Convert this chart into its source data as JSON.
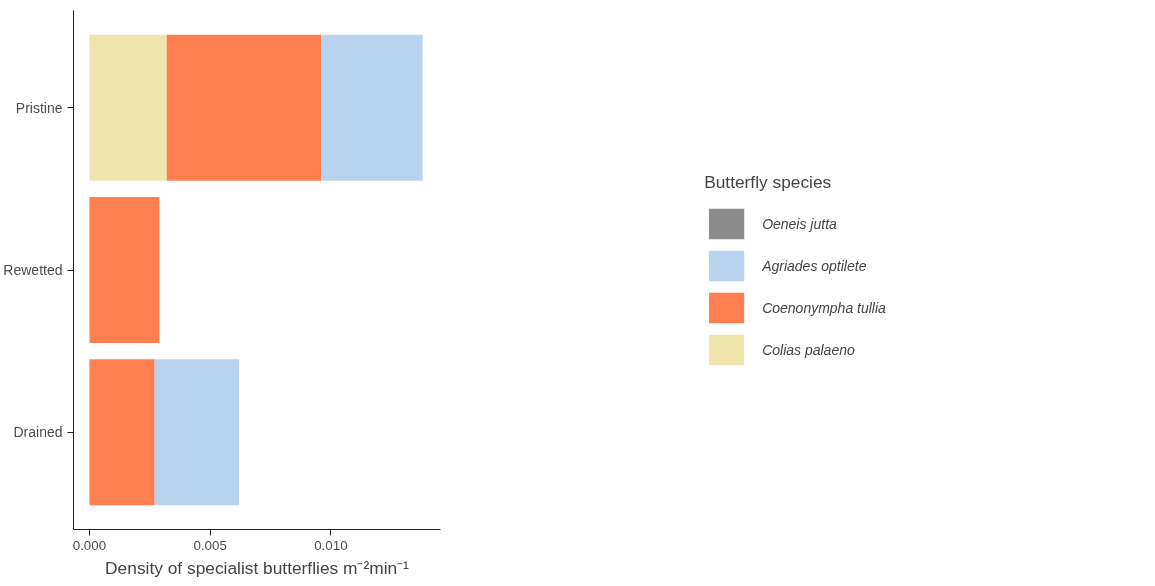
{
  "chart_data": {
    "type": "bar",
    "orientation": "horizontal",
    "stacked": true,
    "xlabel": "Density of specialist butterflies m⁻²min⁻¹",
    "legend_title": "Butterfly species",
    "categories": [
      "Pristine",
      "Rewetted",
      "Drained"
    ],
    "series": [
      {
        "name": "Colias palaeno",
        "color": "#ede5ab",
        "values": [
          0.0032,
          null,
          null
        ]
      },
      {
        "name": "Coenonympha tullia",
        "color": "#ff7f50",
        "values": [
          0.0064,
          0.0029,
          0.0027
        ]
      },
      {
        "name": "Agriades optilete",
        "color": "#b9d3ee",
        "values": [
          0.0042,
          null,
          0.0035
        ]
      },
      {
        "name": "Oeneis jutta",
        "color": "#8c8c8c",
        "values": [
          null,
          null,
          null
        ]
      }
    ],
    "xlim": [
      -0.00066,
      0.01454
    ],
    "xticks": [
      {
        "value": 0,
        "label": "0.000"
      },
      {
        "value": 0.005,
        "label": "0.005"
      },
      {
        "value": 0.01,
        "label": "0.010"
      }
    ],
    "grid": false,
    "legend": "right"
  }
}
